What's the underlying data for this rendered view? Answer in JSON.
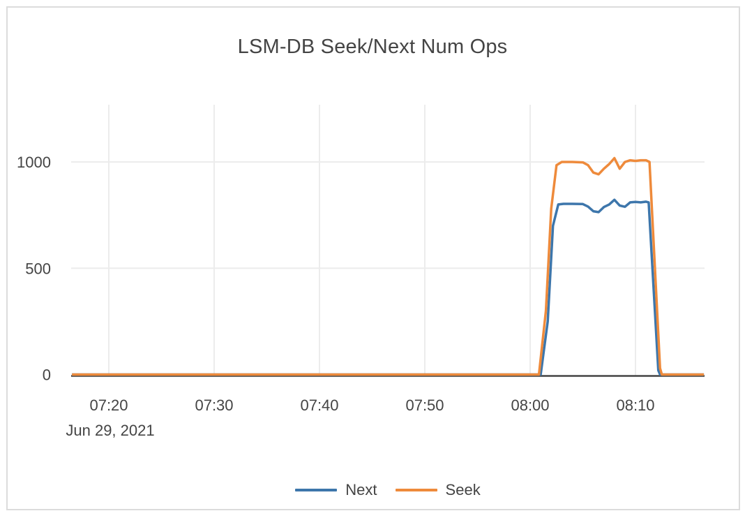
{
  "title": "LSM-DB Seek/Next Num Ops",
  "colors": {
    "next": "#3d76ab",
    "seek": "#ee8a3b",
    "grid": "#ececec",
    "axis_line": "#444444",
    "text": "#444444",
    "border": "#dcdcdc",
    "background": "#ffffff"
  },
  "chart_data": {
    "type": "line",
    "title": "LSM-DB Seek/Next Num Ops",
    "xlabel": "",
    "ylabel": "",
    "grid": true,
    "legend_position": "bottom-center",
    "x_axis": {
      "date_label": "Jun 29, 2021",
      "ticks": [
        "07:20",
        "07:30",
        "07:40",
        "07:50",
        "08:00",
        "08:10"
      ],
      "range": [
        "07:16:30",
        "08:16:30"
      ]
    },
    "y_axis": {
      "ticks": [
        0,
        500,
        1000
      ],
      "range": [
        0,
        1270
      ]
    },
    "series": [
      {
        "name": "Next",
        "color": "#3d76ab",
        "points": [
          [
            "07:16:30",
            0
          ],
          [
            "08:01:00",
            0
          ],
          [
            "08:01:40",
            250
          ],
          [
            "08:02:10",
            700
          ],
          [
            "08:02:40",
            800
          ],
          [
            "08:03:10",
            803
          ],
          [
            "08:04:00",
            803
          ],
          [
            "08:05:00",
            802
          ],
          [
            "08:05:30",
            790
          ],
          [
            "08:06:00",
            768
          ],
          [
            "08:06:30",
            764
          ],
          [
            "08:07:00",
            788
          ],
          [
            "08:07:30",
            800
          ],
          [
            "08:08:00",
            822
          ],
          [
            "08:08:30",
            795
          ],
          [
            "08:09:00",
            789
          ],
          [
            "08:09:30",
            810
          ],
          [
            "08:10:00",
            812
          ],
          [
            "08:10:30",
            810
          ],
          [
            "08:11:00",
            813
          ],
          [
            "08:11:15",
            810
          ],
          [
            "08:12:10",
            20
          ],
          [
            "08:12:20",
            0
          ],
          [
            "08:16:30",
            0
          ]
        ]
      },
      {
        "name": "Seek",
        "color": "#ee8a3b",
        "points": [
          [
            "07:16:30",
            0
          ],
          [
            "08:00:50",
            0
          ],
          [
            "08:01:30",
            300
          ],
          [
            "08:02:00",
            780
          ],
          [
            "08:02:30",
            985
          ],
          [
            "08:03:00",
            1000
          ],
          [
            "08:04:00",
            1000
          ],
          [
            "08:05:00",
            998
          ],
          [
            "08:05:30",
            985
          ],
          [
            "08:06:00",
            950
          ],
          [
            "08:06:30",
            942
          ],
          [
            "08:07:00",
            968
          ],
          [
            "08:07:30",
            990
          ],
          [
            "08:08:00",
            1018
          ],
          [
            "08:08:30",
            968
          ],
          [
            "08:09:00",
            1000
          ],
          [
            "08:09:30",
            1008
          ],
          [
            "08:10:00",
            1005
          ],
          [
            "08:10:30",
            1008
          ],
          [
            "08:11:00",
            1008
          ],
          [
            "08:11:20",
            1000
          ],
          [
            "08:12:20",
            30
          ],
          [
            "08:12:30",
            0
          ],
          [
            "08:16:30",
            0
          ]
        ]
      }
    ]
  }
}
